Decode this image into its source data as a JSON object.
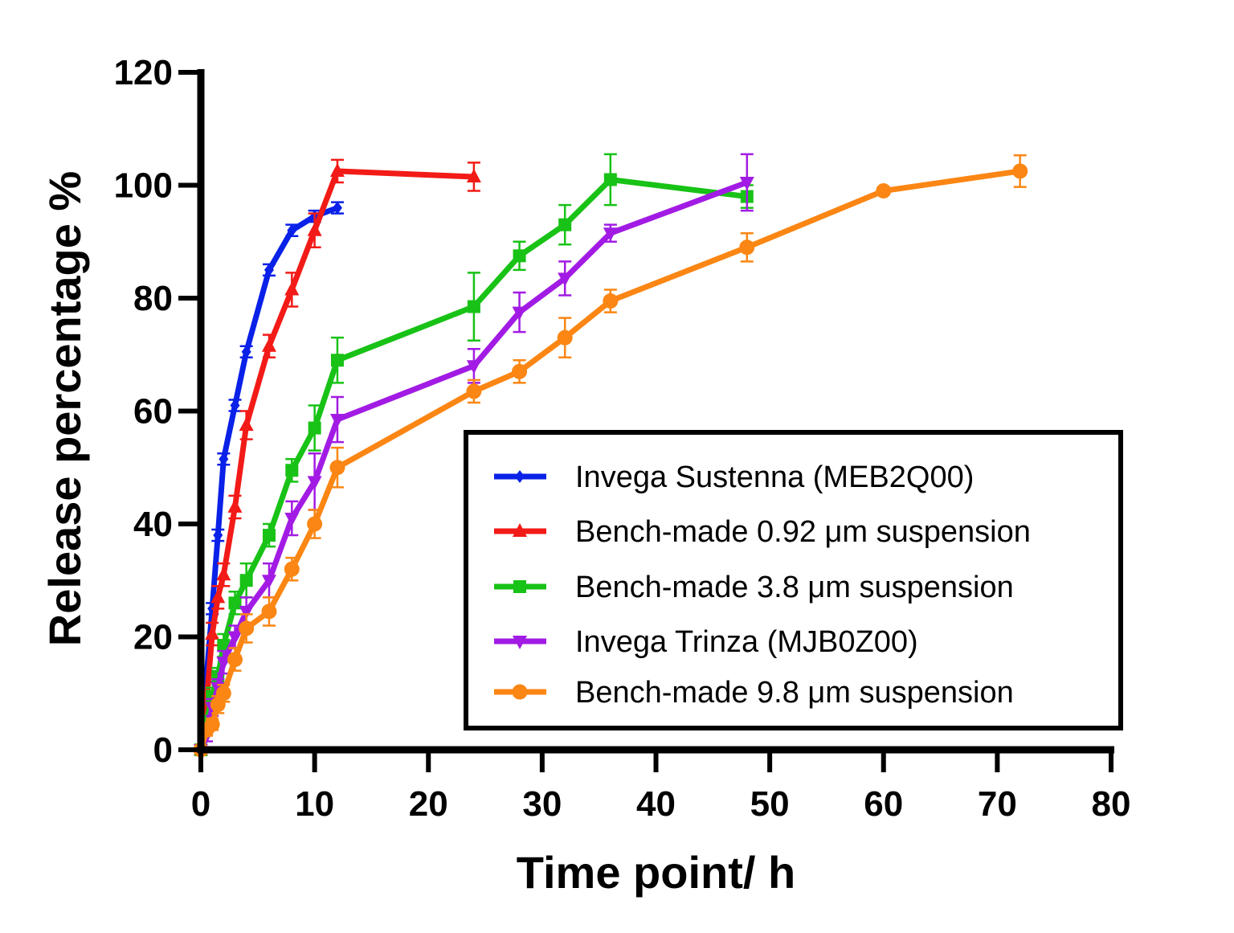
{
  "chart_data": {
    "type": "line",
    "xlabel": "Time point/ h",
    "ylabel": "Release percentage %",
    "xlim": [
      0,
      80
    ],
    "ylim": [
      0,
      120
    ],
    "xticks": [
      0,
      10,
      20,
      30,
      40,
      50,
      60,
      70,
      80
    ],
    "yticks": [
      0,
      20,
      40,
      60,
      80,
      100,
      120
    ],
    "grid": false,
    "legend_position": "bottom-right",
    "series": [
      {
        "name": "Invega Sustenna (MEB2Q00)",
        "color": "#0a21e8",
        "marker": "diamond",
        "x": [
          0,
          0.5,
          1,
          1.5,
          2,
          3,
          4,
          6,
          8,
          10,
          12
        ],
        "y": [
          0,
          13,
          25,
          38,
          51.5,
          61,
          70.5,
          85,
          92,
          94.5,
          96
        ],
        "err": [
          0,
          1,
          1,
          1,
          1,
          1,
          1,
          1,
          1,
          1,
          1
        ]
      },
      {
        "name": "Bench-made 0.92 μm suspension",
        "color": "#f21b17",
        "marker": "triangle-up",
        "x": [
          0,
          0.5,
          1,
          1.5,
          2,
          3,
          4,
          6,
          8,
          10,
          12,
          24
        ],
        "y": [
          0,
          8.5,
          20.5,
          27,
          31,
          43,
          57.5,
          71.5,
          81.5,
          92,
          102.5,
          101.5
        ],
        "err": [
          0,
          1,
          2,
          2,
          2,
          2,
          2.5,
          2,
          3,
          3,
          2,
          2.5
        ]
      },
      {
        "name": "Bench-made 3.8 μm suspension",
        "color": "#18c216",
        "marker": "square",
        "x": [
          0,
          0.5,
          1,
          1.5,
          2,
          3,
          4,
          6,
          8,
          10,
          12,
          24,
          28,
          32,
          36,
          48
        ],
        "y": [
          0,
          5,
          9.5,
          13,
          18.5,
          26,
          30,
          38,
          49.5,
          57,
          69,
          78.5,
          87.5,
          93,
          101,
          98
        ],
        "err": [
          0,
          1,
          1.5,
          1.5,
          2,
          2,
          3,
          2,
          2,
          4,
          4,
          6,
          2.5,
          3.5,
          4.5,
          2
        ]
      },
      {
        "name": "Invega Trinza (MJB0Z00)",
        "color": "#a21be4",
        "marker": "triangle-down",
        "x": [
          0,
          0.5,
          1,
          1.5,
          2,
          3,
          4,
          6,
          8,
          10,
          12,
          24,
          28,
          32,
          36,
          48
        ],
        "y": [
          0,
          2.5,
          7.5,
          11,
          15.5,
          20,
          24.5,
          30,
          41,
          47.5,
          58.5,
          68,
          77.5,
          83.5,
          91.5,
          100.5
        ],
        "err": [
          0,
          1,
          1.5,
          1.5,
          2,
          2,
          2.5,
          3,
          3,
          5,
          4,
          3,
          3.5,
          3,
          1.5,
          5
        ]
      },
      {
        "name": "Bench-made 9.8 μm suspension",
        "color": "#fb8613",
        "marker": "circle",
        "x": [
          0,
          0.5,
          1,
          1.5,
          2,
          3,
          4,
          6,
          8,
          10,
          12,
          24,
          28,
          32,
          36,
          48,
          60,
          72
        ],
        "y": [
          0,
          3.5,
          4.5,
          8,
          10,
          16,
          21.5,
          24.5,
          32,
          40,
          50,
          63.5,
          67,
          73,
          79.5,
          89,
          99,
          102.5
        ],
        "err": [
          0,
          1,
          1,
          1.5,
          1.5,
          2,
          2.5,
          2.5,
          2,
          2.5,
          3.5,
          2,
          2,
          3.5,
          2,
          2.5,
          0.5,
          2.8
        ]
      }
    ]
  }
}
